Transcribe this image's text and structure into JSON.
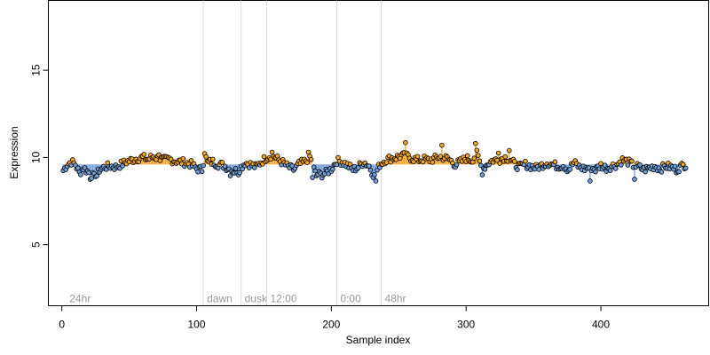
{
  "chart_data": {
    "type": "scatter",
    "title": "",
    "xlabel": "Sample index",
    "ylabel": "Expression",
    "xlim": [
      -10,
      480
    ],
    "ylim": [
      1.5,
      19
    ],
    "x_ticks": [
      0,
      100,
      200,
      300,
      400
    ],
    "y_ticks": [
      5,
      10,
      15
    ],
    "baseline": 9.6,
    "grid": false,
    "legend": "none",
    "colors": {
      "above": "#f5a623",
      "below": "#6f9fd8",
      "point_stroke": "#000000",
      "vline": "#dcdcdc",
      "vline_label": "#9a9a9a"
    },
    "reference_lines": [
      {
        "x": 3,
        "label": "24hr",
        "line": false
      },
      {
        "x": 105,
        "label": "dawn",
        "line": true
      },
      {
        "x": 133,
        "label": "dusk",
        "line": true
      },
      {
        "x": 152,
        "label": "12:00",
        "line": true
      },
      {
        "x": 204,
        "label": "0:00",
        "line": true
      },
      {
        "x": 237,
        "label": "48hr",
        "line": true
      }
    ],
    "anchors": [
      [
        1,
        9.25
      ],
      [
        4,
        9.6
      ],
      [
        7,
        9.75
      ],
      [
        10,
        9.6
      ],
      [
        13,
        9.1
      ],
      [
        16,
        9.4
      ],
      [
        19,
        9.2
      ],
      [
        22,
        9.0
      ],
      [
        25,
        8.8
      ],
      [
        28,
        9.3
      ],
      [
        32,
        9.45
      ],
      [
        36,
        9.5
      ],
      [
        40,
        9.45
      ],
      [
        44,
        9.6
      ],
      [
        48,
        9.75
      ],
      [
        52,
        9.85
      ],
      [
        56,
        9.95
      ],
      [
        60,
        10.0
      ],
      [
        64,
        9.9
      ],
      [
        68,
        10.05
      ],
      [
        72,
        9.95
      ],
      [
        76,
        9.85
      ],
      [
        80,
        9.9
      ],
      [
        84,
        9.8
      ],
      [
        88,
        9.75
      ],
      [
        92,
        9.7
      ],
      [
        96,
        9.6
      ],
      [
        100,
        9.35
      ],
      [
        104,
        9.3
      ],
      [
        106,
        10.2
      ],
      [
        108,
        9.7
      ],
      [
        112,
        9.75
      ],
      [
        116,
        9.6
      ],
      [
        120,
        9.55
      ],
      [
        124,
        9.35
      ],
      [
        128,
        9.2
      ],
      [
        132,
        9.35
      ],
      [
        136,
        9.7
      ],
      [
        140,
        9.6
      ],
      [
        144,
        9.45
      ],
      [
        148,
        9.75
      ],
      [
        152,
        10.0
      ],
      [
        156,
        10.15
      ],
      [
        160,
        9.9
      ],
      [
        164,
        9.7
      ],
      [
        168,
        9.45
      ],
      [
        172,
        9.3
      ],
      [
        176,
        9.6
      ],
      [
        180,
        9.75
      ],
      [
        184,
        10.05
      ],
      [
        188,
        9.1
      ],
      [
        192,
        9.0
      ],
      [
        196,
        9.1
      ],
      [
        200,
        9.35
      ],
      [
        204,
        9.8
      ],
      [
        208,
        9.75
      ],
      [
        212,
        9.55
      ],
      [
        216,
        9.3
      ],
      [
        220,
        9.45
      ],
      [
        224,
        9.75
      ],
      [
        228,
        9.5
      ],
      [
        232,
        8.9
      ],
      [
        236,
        9.6
      ],
      [
        240,
        9.85
      ],
      [
        244,
        9.95
      ],
      [
        248,
        10.0
      ],
      [
        252,
        10.1
      ],
      [
        256,
        10.05
      ],
      [
        260,
        9.95
      ],
      [
        264,
        9.85
      ],
      [
        268,
        9.9
      ],
      [
        272,
        9.85
      ],
      [
        276,
        9.9
      ],
      [
        280,
        10.05
      ],
      [
        284,
        10.0
      ],
      [
        288,
        9.85
      ],
      [
        292,
        9.6
      ],
      [
        296,
        9.75
      ],
      [
        300,
        9.95
      ],
      [
        304,
        9.85
      ],
      [
        308,
        10.2
      ],
      [
        312,
        9.3
      ],
      [
        316,
        9.65
      ],
      [
        320,
        9.85
      ],
      [
        324,
        9.85
      ],
      [
        328,
        10.0
      ],
      [
        332,
        9.95
      ],
      [
        336,
        9.6
      ],
      [
        340,
        9.45
      ],
      [
        344,
        9.6
      ],
      [
        348,
        9.5
      ],
      [
        352,
        9.4
      ],
      [
        356,
        9.55
      ],
      [
        360,
        9.7
      ],
      [
        364,
        9.6
      ],
      [
        368,
        9.5
      ],
      [
        372,
        9.55
      ],
      [
        376,
        9.3
      ],
      [
        380,
        9.7
      ],
      [
        384,
        9.45
      ],
      [
        388,
        9.35
      ],
      [
        392,
        9.45
      ],
      [
        396,
        9.3
      ],
      [
        400,
        9.55
      ],
      [
        404,
        9.4
      ],
      [
        408,
        9.5
      ],
      [
        412,
        9.6
      ],
      [
        416,
        9.85
      ],
      [
        420,
        9.75
      ],
      [
        424,
        9.55
      ],
      [
        428,
        9.45
      ],
      [
        432,
        9.3
      ],
      [
        436,
        9.4
      ],
      [
        440,
        9.5
      ],
      [
        444,
        9.35
      ],
      [
        448,
        9.5
      ],
      [
        452,
        9.45
      ],
      [
        456,
        9.3
      ],
      [
        460,
        9.5
      ],
      [
        463,
        9.6
      ]
    ],
    "highlights": [
      [
        21,
        8.75
      ],
      [
        25,
        8.9
      ],
      [
        72,
        10.15
      ],
      [
        106,
        10.22
      ],
      [
        125,
        8.95
      ],
      [
        131,
        9.0
      ],
      [
        156,
        10.3
      ],
      [
        183,
        10.3
      ],
      [
        186,
        8.85
      ],
      [
        189,
        8.95
      ],
      [
        233,
        8.65
      ],
      [
        255,
        10.85
      ],
      [
        282,
        10.7
      ],
      [
        307,
        10.8
      ],
      [
        312,
        9.0
      ],
      [
        324,
        10.25
      ],
      [
        332,
        10.4
      ],
      [
        392,
        8.65
      ],
      [
        425,
        8.75
      ]
    ]
  }
}
